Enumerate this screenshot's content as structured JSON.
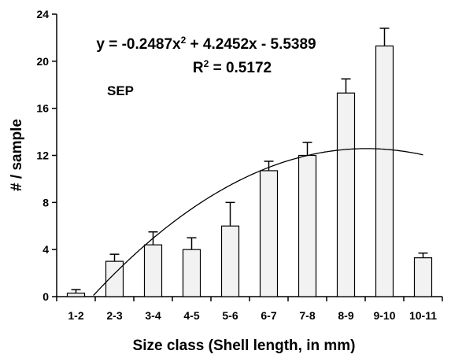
{
  "chart_data": {
    "type": "bar",
    "x_label": "Size class (Shell length, in mm)",
    "y_label": "# / sample",
    "annotation": "SEP",
    "categories": [
      "1-2",
      "2-3",
      "3-4",
      "4-5",
      "5-6",
      "6-7",
      "7-8",
      "8-9",
      "9-10",
      "10-11"
    ],
    "values": [
      0.3,
      3.0,
      4.4,
      4.0,
      6.0,
      10.7,
      12.0,
      17.3,
      21.3,
      3.3
    ],
    "errors": [
      0.3,
      0.6,
      1.1,
      1.0,
      2.0,
      0.8,
      1.1,
      1.2,
      1.5,
      0.4
    ],
    "color": "#f2f2f2",
    "ylim": [
      0,
      24
    ],
    "yticks": [
      0,
      4,
      8,
      12,
      16,
      20,
      24
    ],
    "trendline": {
      "a": -0.2487,
      "b": 4.2452,
      "c": -5.5389,
      "equation": [
        "y = -0.2487x",
        "2",
        " + 4.2452x - 5.5389"
      ],
      "r2": 0.5172,
      "r2_label": [
        "R",
        "2",
        " = 0.5172"
      ]
    }
  }
}
